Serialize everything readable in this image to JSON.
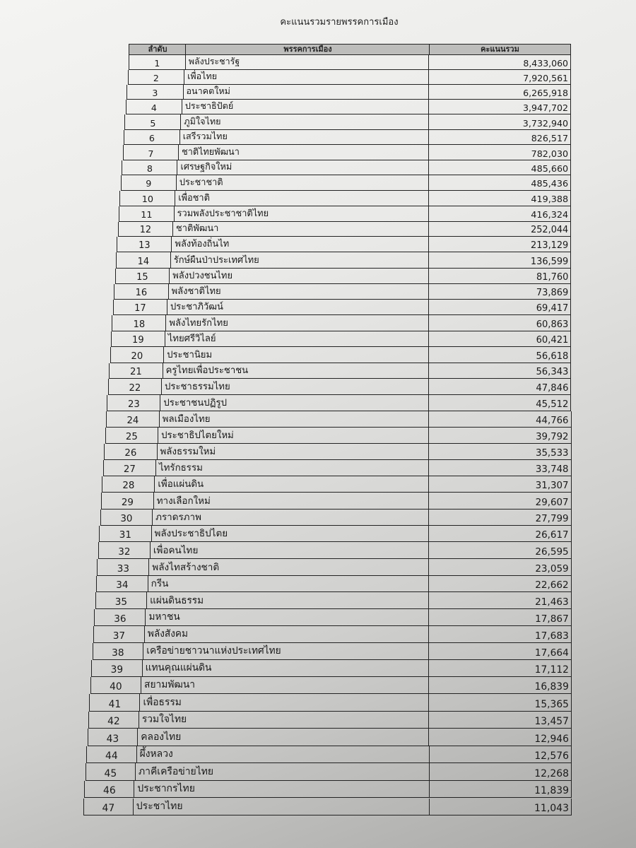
{
  "title": "คะแนนรวมรายพรรคการเมือง",
  "columns": {
    "rank": "ลำดับ",
    "party": "พรรคการเมือง",
    "votes": "คะแนนรวม"
  },
  "rows": [
    {
      "rank": "1",
      "party": "พลังประชารัฐ",
      "votes": "8,433,060"
    },
    {
      "rank": "2",
      "party": "เพื่อไทย",
      "votes": "7,920,561"
    },
    {
      "rank": "3",
      "party": "อนาคตใหม่",
      "votes": "6,265,918"
    },
    {
      "rank": "4",
      "party": "ประชาธิปัตย์",
      "votes": "3,947,702"
    },
    {
      "rank": "5",
      "party": "ภูมิใจไทย",
      "votes": "3,732,940"
    },
    {
      "rank": "6",
      "party": "เสรีรวมไทย",
      "votes": "826,517"
    },
    {
      "rank": "7",
      "party": "ชาติไทยพัฒนา",
      "votes": "782,030"
    },
    {
      "rank": "8",
      "party": "เศรษฐกิจใหม่",
      "votes": "485,660"
    },
    {
      "rank": "9",
      "party": "ประชาชาติ",
      "votes": "485,436"
    },
    {
      "rank": "10",
      "party": "เพื่อชาติ",
      "votes": "419,388"
    },
    {
      "rank": "11",
      "party": "รวมพลังประชาชาติไทย",
      "votes": "416,324"
    },
    {
      "rank": "12",
      "party": "ชาติพัฒนา",
      "votes": "252,044"
    },
    {
      "rank": "13",
      "party": "พลังท้องถิ่นไท",
      "votes": "213,129"
    },
    {
      "rank": "14",
      "party": "รักษ์ผืนป่าประเทศไทย",
      "votes": "136,599"
    },
    {
      "rank": "15",
      "party": "พลังปวงชนไทย",
      "votes": "81,760"
    },
    {
      "rank": "16",
      "party": "พลังชาติไทย",
      "votes": "73,869"
    },
    {
      "rank": "17",
      "party": "ประชาภิวัฒน์",
      "votes": "69,417"
    },
    {
      "rank": "18",
      "party": "พลังไทยรักไทย",
      "votes": "60,863"
    },
    {
      "rank": "19",
      "party": "ไทยศรีวิไลย์",
      "votes": "60,421"
    },
    {
      "rank": "20",
      "party": "ประชานิยม",
      "votes": "56,618"
    },
    {
      "rank": "21",
      "party": "ครูไทยเพื่อประชาชน",
      "votes": "56,343"
    },
    {
      "rank": "22",
      "party": "ประชาธรรมไทย",
      "votes": "47,846"
    },
    {
      "rank": "23",
      "party": "ประชาชนปฏิรูป",
      "votes": "45,512"
    },
    {
      "rank": "24",
      "party": "พลเมืองไทย",
      "votes": "44,766"
    },
    {
      "rank": "25",
      "party": "ประชาธิปไตยใหม่",
      "votes": "39,792"
    },
    {
      "rank": "26",
      "party": "พลังธรรมใหม่",
      "votes": "35,533"
    },
    {
      "rank": "27",
      "party": "ไทรักธรรม",
      "votes": "33,748"
    },
    {
      "rank": "28",
      "party": "เพื่อแผ่นดิน",
      "votes": "31,307"
    },
    {
      "rank": "29",
      "party": "ทางเลือกใหม่",
      "votes": "29,607"
    },
    {
      "rank": "30",
      "party": "ภราดรภาพ",
      "votes": "27,799"
    },
    {
      "rank": "31",
      "party": "พลังประชาธิปไตย",
      "votes": "26,617"
    },
    {
      "rank": "32",
      "party": "เพื่อคนไทย",
      "votes": "26,595"
    },
    {
      "rank": "33",
      "party": "พลังไทสร้างชาติ",
      "votes": "23,059"
    },
    {
      "rank": "34",
      "party": "กรีน",
      "votes": "22,662"
    },
    {
      "rank": "35",
      "party": "แผ่นดินธรรม",
      "votes": "21,463"
    },
    {
      "rank": "36",
      "party": "มหาชน",
      "votes": "17,867"
    },
    {
      "rank": "37",
      "party": "พลังสังคม",
      "votes": "17,683"
    },
    {
      "rank": "38",
      "party": "เครือข่ายชาวนาแห่งประเทศไทย",
      "votes": "17,664"
    },
    {
      "rank": "39",
      "party": "แทนคุณแผ่นดิน",
      "votes": "17,112"
    },
    {
      "rank": "40",
      "party": "สยามพัฒนา",
      "votes": "16,839"
    },
    {
      "rank": "41",
      "party": "เพื่อธรรม",
      "votes": "15,365"
    },
    {
      "rank": "42",
      "party": "รวมใจไทย",
      "votes": "13,457"
    },
    {
      "rank": "43",
      "party": "คลองไทย",
      "votes": "12,946"
    },
    {
      "rank": "44",
      "party": "ผึ้งหลวง",
      "votes": "12,576"
    },
    {
      "rank": "45",
      "party": "ภาคีเครือข่ายไทย",
      "votes": "12,268"
    },
    {
      "rank": "46",
      "party": "ประชากรไทย",
      "votes": "11,839"
    },
    {
      "rank": "47",
      "party": "ประชาไทย",
      "votes": "11,043"
    }
  ]
}
